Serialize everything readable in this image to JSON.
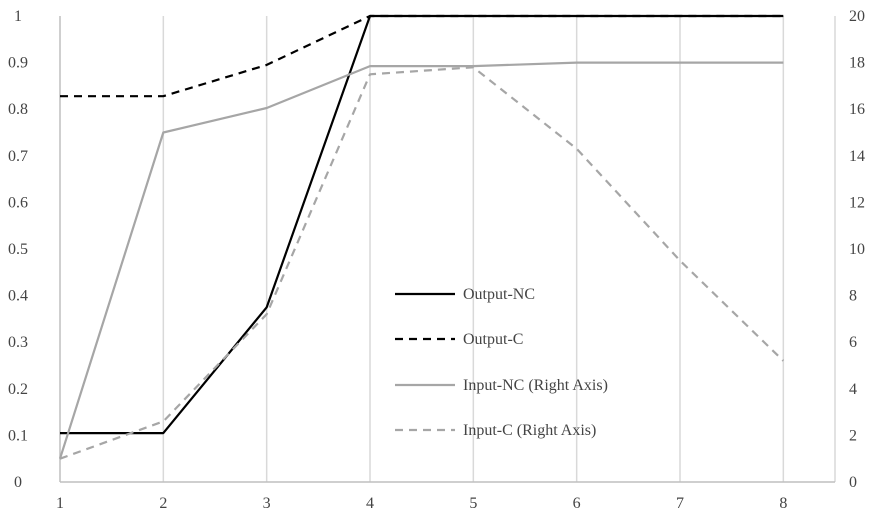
{
  "chart_data": {
    "type": "line",
    "x": [
      1,
      2,
      3,
      4,
      5,
      6,
      7,
      8
    ],
    "xlim": [
      1,
      8.5
    ],
    "ylim_left": [
      0,
      1
    ],
    "ylim_right": [
      0,
      20
    ],
    "left_ticks": [
      "0",
      "0.1",
      "0.2",
      "0.3",
      "0.4",
      "0.5",
      "0.6",
      "0.7",
      "0.8",
      "0.9",
      "1"
    ],
    "right_ticks": [
      "0",
      "2",
      "4",
      "6",
      "8",
      "10",
      "12",
      "14",
      "16",
      "18",
      "20"
    ],
    "x_ticks": [
      "1",
      "2",
      "3",
      "4",
      "5",
      "6",
      "7",
      "8"
    ],
    "grid": "vertical",
    "legend_position": "center",
    "series": [
      {
        "name": "Output-NC",
        "axis": "left",
        "color": "#000000",
        "dash": "solid",
        "values": [
          0.105,
          0.105,
          0.375,
          1.0,
          1.0,
          1.0,
          1.0,
          1.0
        ]
      },
      {
        "name": "Output-C",
        "axis": "left",
        "color": "#000000",
        "dash": "dashed",
        "values": [
          0.828,
          0.828,
          0.895,
          1.0,
          1.0,
          1.0,
          1.0,
          1.0
        ]
      },
      {
        "name": "Input-NC (Right Axis)",
        "axis": "right",
        "color": "#a6a6a6",
        "dash": "solid",
        "values": [
          1.0,
          15.0,
          16.05,
          17.85,
          17.85,
          18.0,
          18.0,
          18.0
        ]
      },
      {
        "name": "Input-C (Right Axis)",
        "axis": "right",
        "color": "#a6a6a6",
        "dash": "dashed",
        "values": [
          1.0,
          2.6,
          7.2,
          17.5,
          17.8,
          14.3,
          9.5,
          5.2
        ]
      }
    ]
  }
}
